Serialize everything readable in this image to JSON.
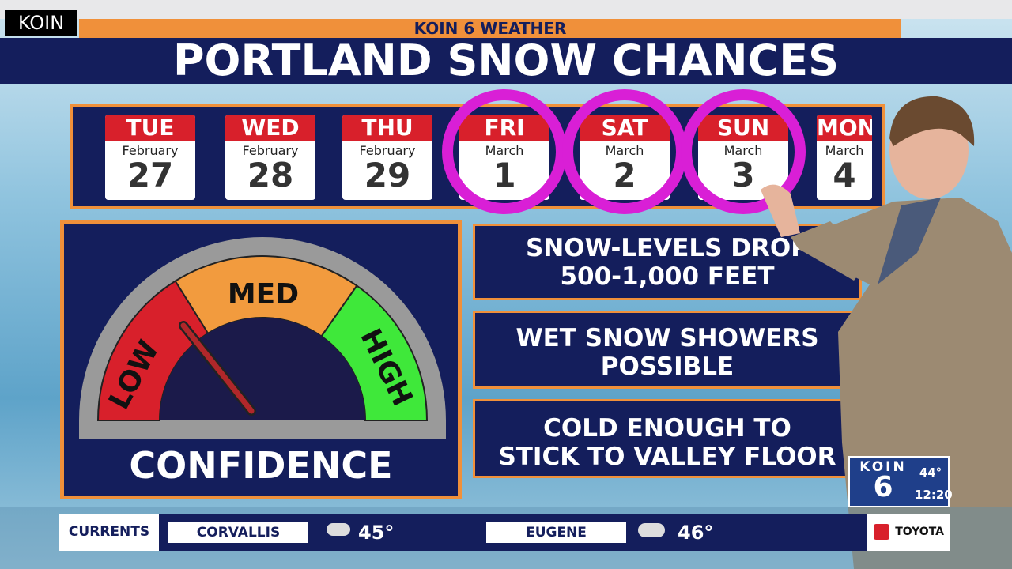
{
  "channel_tag": "KOIN",
  "header": {
    "kicker": "KOIN 6 WEATHER",
    "title": "PORTLAND SNOW CHANCES"
  },
  "calendar": [
    {
      "day": "TUE",
      "month": "February",
      "date": "27"
    },
    {
      "day": "WED",
      "month": "February",
      "date": "28"
    },
    {
      "day": "THU",
      "month": "February",
      "date": "29"
    },
    {
      "day": "FRI",
      "month": "March",
      "date": "1"
    },
    {
      "day": "SAT",
      "month": "March",
      "date": "2"
    },
    {
      "day": "SUN",
      "month": "March",
      "date": "3"
    },
    {
      "day": "MON",
      "month": "March",
      "date": "4"
    }
  ],
  "gauge": {
    "low": "LOW",
    "med": "MED",
    "high": "HIGH",
    "caption": "CONFIDENCE"
  },
  "notes": [
    {
      "line1": "SNOW-LEVELS DROP",
      "line2": "500-1,000 FEET"
    },
    {
      "line1": "WET SNOW SHOWERS",
      "line2": "POSSIBLE"
    },
    {
      "line1": "COLD ENOUGH TO",
      "line2": "STICK TO VALLEY FLOOR"
    }
  ],
  "bug": {
    "name": "KOIN",
    "number": "6",
    "temp": "44°",
    "time": "12:20"
  },
  "ticker": {
    "label": "CURRENTS",
    "cities": [
      {
        "name": "CORVALLIS",
        "temp": "45°"
      },
      {
        "name": "EUGENE",
        "temp": "46°"
      }
    ],
    "sponsor": "TOYOTA"
  }
}
